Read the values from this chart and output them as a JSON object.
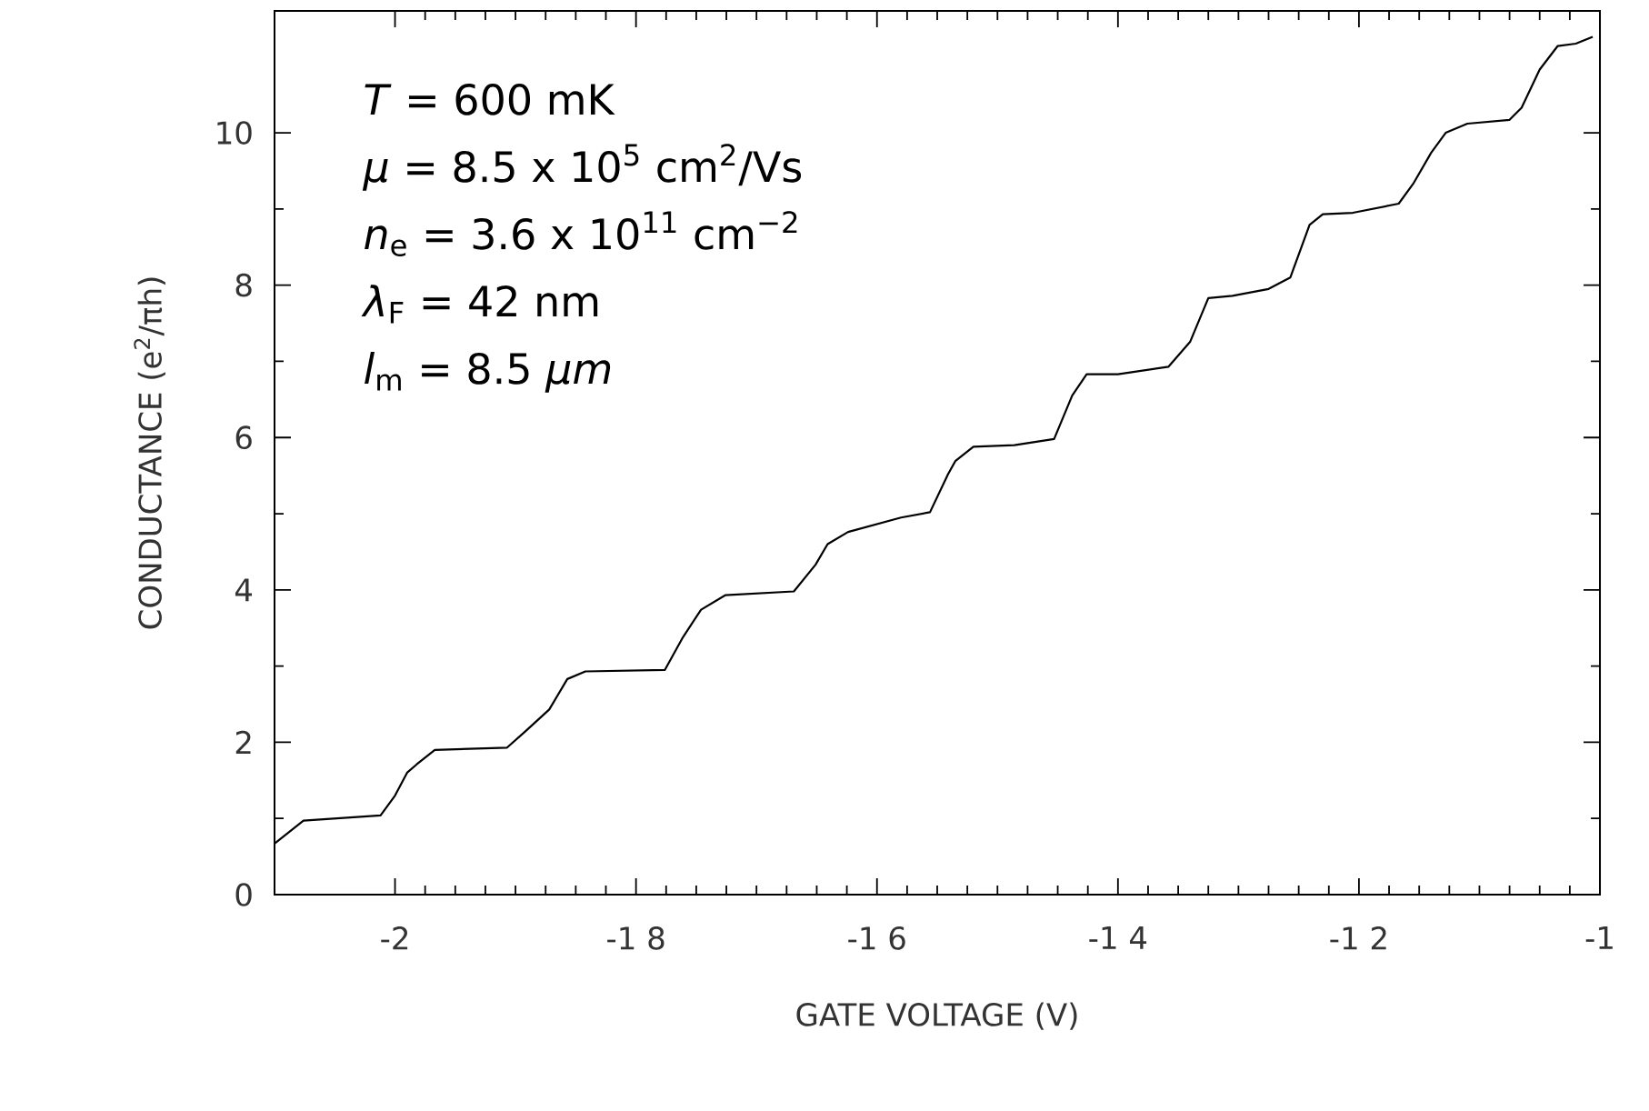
{
  "chart_data": {
    "type": "line",
    "xlabel": "GATE VOLTAGE   (V)",
    "ylabel": "CONDUCTANCE   (e$^{2}$/πh)",
    "xlim": [
      -2.1,
      -1.0
    ],
    "ylim": [
      0,
      11.6
    ],
    "xticks": [
      -2,
      {
        "value": -1.8,
        "label": "-1 8"
      },
      {
        "value": -1.6,
        "label": "-1 6"
      },
      {
        "value": -1.4,
        "label": "-1 4"
      },
      {
        "value": -1.2,
        "label": "-1 2"
      },
      -1
    ],
    "yticks": [
      0,
      2,
      4,
      6,
      8,
      10
    ],
    "annotations": [
      "*T* = 600 mK",
      "*μ* = 8.5 x 10$^{5}$ cm$^{2}$/Vs",
      "*n*$_{e}$ = 3.6 x 10$^{11}$ cm$^{−2}$",
      "*λ*$_{F}$ = 42 nm",
      "*l*$_{m}$ = 8.5 *μm*"
    ],
    "series": [
      {
        "color": "#000000",
        "line_style": "solid",
        "x": [
          -2.1,
          -2.076,
          -2.012,
          -2.0,
          -1.99,
          -1.982,
          -1.967,
          -1.907,
          -1.892,
          -1.872,
          -1.857,
          -1.842,
          -1.776,
          -1.761,
          -1.746,
          -1.726,
          -1.669,
          -1.651,
          -1.641,
          -1.624,
          -1.58,
          -1.556,
          -1.541,
          -1.535,
          -1.52,
          -1.486,
          -1.453,
          -1.438,
          -1.426,
          -1.4,
          -1.358,
          -1.34,
          -1.325,
          -1.305,
          -1.275,
          -1.257,
          -1.241,
          -1.23,
          -1.205,
          -1.167,
          -1.155,
          -1.14,
          -1.128,
          -1.11,
          -1.075,
          -1.065,
          -1.05,
          -1.035,
          -1.02,
          -1.006
        ],
        "values": [
          0.67,
          0.97,
          1.04,
          1.3,
          1.6,
          1.71,
          1.9,
          1.93,
          2.14,
          2.43,
          2.83,
          2.93,
          2.95,
          3.38,
          3.74,
          3.93,
          3.98,
          4.33,
          4.6,
          4.76,
          4.95,
          5.02,
          5.52,
          5.69,
          5.88,
          5.9,
          5.98,
          6.55,
          6.83,
          6.83,
          6.93,
          7.26,
          7.83,
          7.86,
          7.95,
          8.1,
          8.79,
          8.93,
          8.95,
          9.07,
          9.33,
          9.74,
          10.0,
          10.12,
          10.17,
          10.33,
          10.83,
          11.14,
          11.17,
          11.26
        ]
      }
    ]
  }
}
